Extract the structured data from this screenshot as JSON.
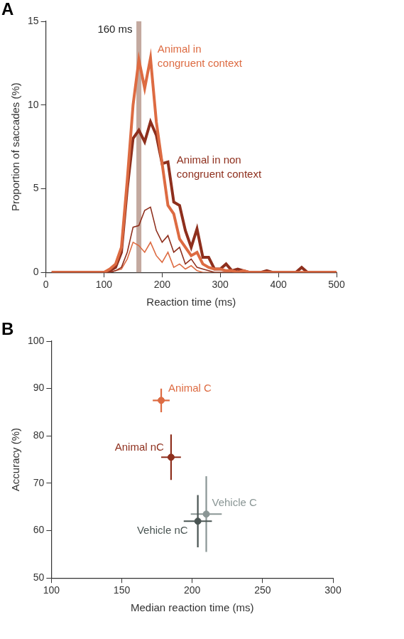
{
  "chart_data": [
    {
      "type": "line",
      "panel": "A",
      "x_label": "Reaction time (ms)",
      "y_label": "Proportion of saccades (%)",
      "x": [
        10,
        20,
        30,
        40,
        50,
        60,
        70,
        80,
        90,
        100,
        110,
        120,
        130,
        140,
        150,
        160,
        170,
        180,
        190,
        200,
        210,
        220,
        230,
        240,
        250,
        260,
        270,
        280,
        290,
        300,
        310,
        320,
        330,
        340,
        350,
        360,
        370,
        380,
        390,
        400,
        410,
        420,
        430,
        440,
        450,
        460,
        470,
        480,
        490,
        500
      ],
      "series": [
        {
          "name": "Animal in congruent context",
          "color": "#dd6b42",
          "line_style": "thick",
          "values": [
            0,
            0,
            0,
            0,
            0,
            0,
            0,
            0,
            0,
            0,
            0.2,
            0.5,
            1.5,
            5.5,
            10,
            12.7,
            11,
            12.8,
            9,
            6.5,
            4,
            3.5,
            2,
            1.5,
            1,
            1.2,
            0.5,
            0.3,
            0.2,
            0.2,
            0.1,
            0.1,
            0,
            0.1,
            0,
            0,
            0,
            0,
            0,
            0,
            0,
            0,
            0,
            0,
            0,
            0,
            0,
            0,
            0,
            0
          ]
        },
        {
          "name": "Animal in non congruent context",
          "color": "#8e2f1d",
          "line_style": "thick",
          "values": [
            0,
            0,
            0,
            0,
            0,
            0,
            0,
            0,
            0,
            0,
            0.1,
            0.3,
            1.2,
            5,
            8,
            8.5,
            7.8,
            9,
            8.2,
            6.5,
            6.6,
            4.2,
            4,
            2.5,
            1.5,
            2.6,
            0.9,
            0.9,
            0.2,
            0.2,
            0.5,
            0.1,
            0.2,
            0.1,
            0,
            0,
            0,
            0.1,
            0,
            0,
            0,
            0,
            0,
            0.3,
            0,
            0,
            0,
            0,
            0,
            0
          ]
        },
        {
          "color": "#8e2f1d",
          "line_style": "thin",
          "values": [
            0,
            0,
            0,
            0,
            0,
            0,
            0,
            0,
            0,
            0,
            0,
            0.1,
            0.3,
            1.2,
            2.7,
            2.8,
            3.7,
            3.9,
            2.5,
            1.8,
            2.2,
            1.2,
            1.5,
            0.5,
            0.8,
            0.3,
            0.2,
            0.1,
            0,
            0,
            0,
            0,
            0,
            0,
            0,
            0,
            0,
            0,
            0,
            0,
            0,
            0,
            0,
            0,
            0,
            0,
            0,
            0,
            0,
            0
          ]
        },
        {
          "color": "#dd6b42",
          "line_style": "thin",
          "values": [
            0,
            0,
            0,
            0,
            0,
            0,
            0,
            0,
            0,
            0,
            0,
            0.1,
            0.2,
            0.8,
            1.8,
            1.6,
            1.2,
            1.8,
            1,
            0.6,
            1.2,
            0.3,
            0.5,
            0.2,
            0.4,
            0.1,
            0,
            0,
            0,
            0,
            0,
            0,
            0,
            0,
            0,
            0,
            0,
            0,
            0,
            0,
            0,
            0,
            0,
            0,
            0,
            0,
            0,
            0,
            0,
            0
          ]
        }
      ],
      "reference_line": {
        "x": 160,
        "label": "160 ms",
        "color": "#b89a8e"
      },
      "annotations": [
        {
          "text": [
            "Animal in",
            "congruent context"
          ],
          "x": 192,
          "y": 13.3,
          "color": "#dd6b42"
        },
        {
          "text": [
            "Animal in non",
            "congruent context"
          ],
          "x": 225,
          "y": 6.7,
          "color": "#8e2f1d"
        }
      ],
      "xlim": [
        0,
        500
      ],
      "xticks": [
        0,
        100,
        200,
        300,
        400,
        500
      ],
      "ylim": [
        0,
        15
      ],
      "yticks": [
        0,
        5,
        10,
        15
      ],
      "grid": false
    },
    {
      "type": "scatter",
      "panel": "B",
      "x_label": "Median reaction time (ms)",
      "y_label": "Accuracy (%)",
      "points": [
        {
          "name": "Animal C",
          "color": "#dd6b42",
          "x": 178,
          "y": 87.5,
          "x_error": 6,
          "y_error": 2.5
        },
        {
          "name": "Animal nC",
          "color": "#8e2f1d",
          "x": 185,
          "y": 75.5,
          "x_error": 7,
          "y_error": 4.8
        },
        {
          "name": "Vehicle C",
          "color": "#8a9695",
          "x": 210,
          "y": 63.5,
          "x_error": 11,
          "y_error": 8
        },
        {
          "name": "Vehicle nC",
          "color": "#4a5553",
          "x": 204,
          "y": 62,
          "x_error": 10,
          "y_error": 5.5
        }
      ],
      "xlim": [
        100,
        300
      ],
      "xticks": [
        100,
        150,
        200,
        250,
        300
      ],
      "ylim": [
        50,
        100
      ],
      "yticks": [
        50,
        60,
        70,
        80,
        90,
        100
      ],
      "grid": false
    }
  ]
}
